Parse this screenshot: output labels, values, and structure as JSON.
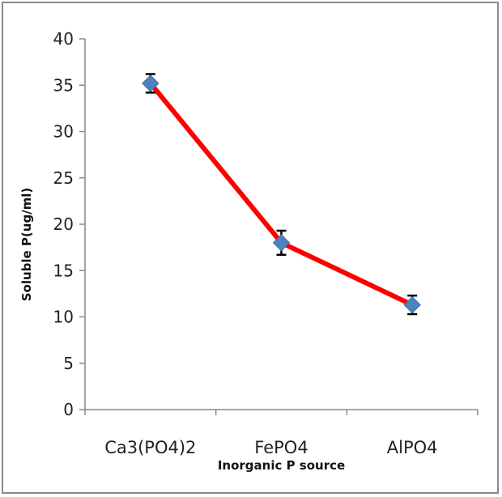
{
  "chart_data": {
    "type": "line",
    "title": "",
    "xlabel": "Inorganic P source",
    "ylabel": "Soluble P(ug/ml)",
    "categories": [
      "Ca3(PO4)2",
      "FePO4",
      "AlPO4"
    ],
    "series": [
      {
        "values": [
          35.2,
          18.0,
          11.3
        ],
        "error": [
          1.0,
          1.3,
          1.0
        ],
        "color": "#ff0000",
        "marker": "diamond",
        "marker_color": "#4f81bd"
      }
    ],
    "ylim": [
      0,
      40
    ],
    "yticks": [
      0,
      5,
      10,
      15,
      20,
      25,
      30,
      35,
      40
    ],
    "grid": false,
    "legend": "none"
  }
}
